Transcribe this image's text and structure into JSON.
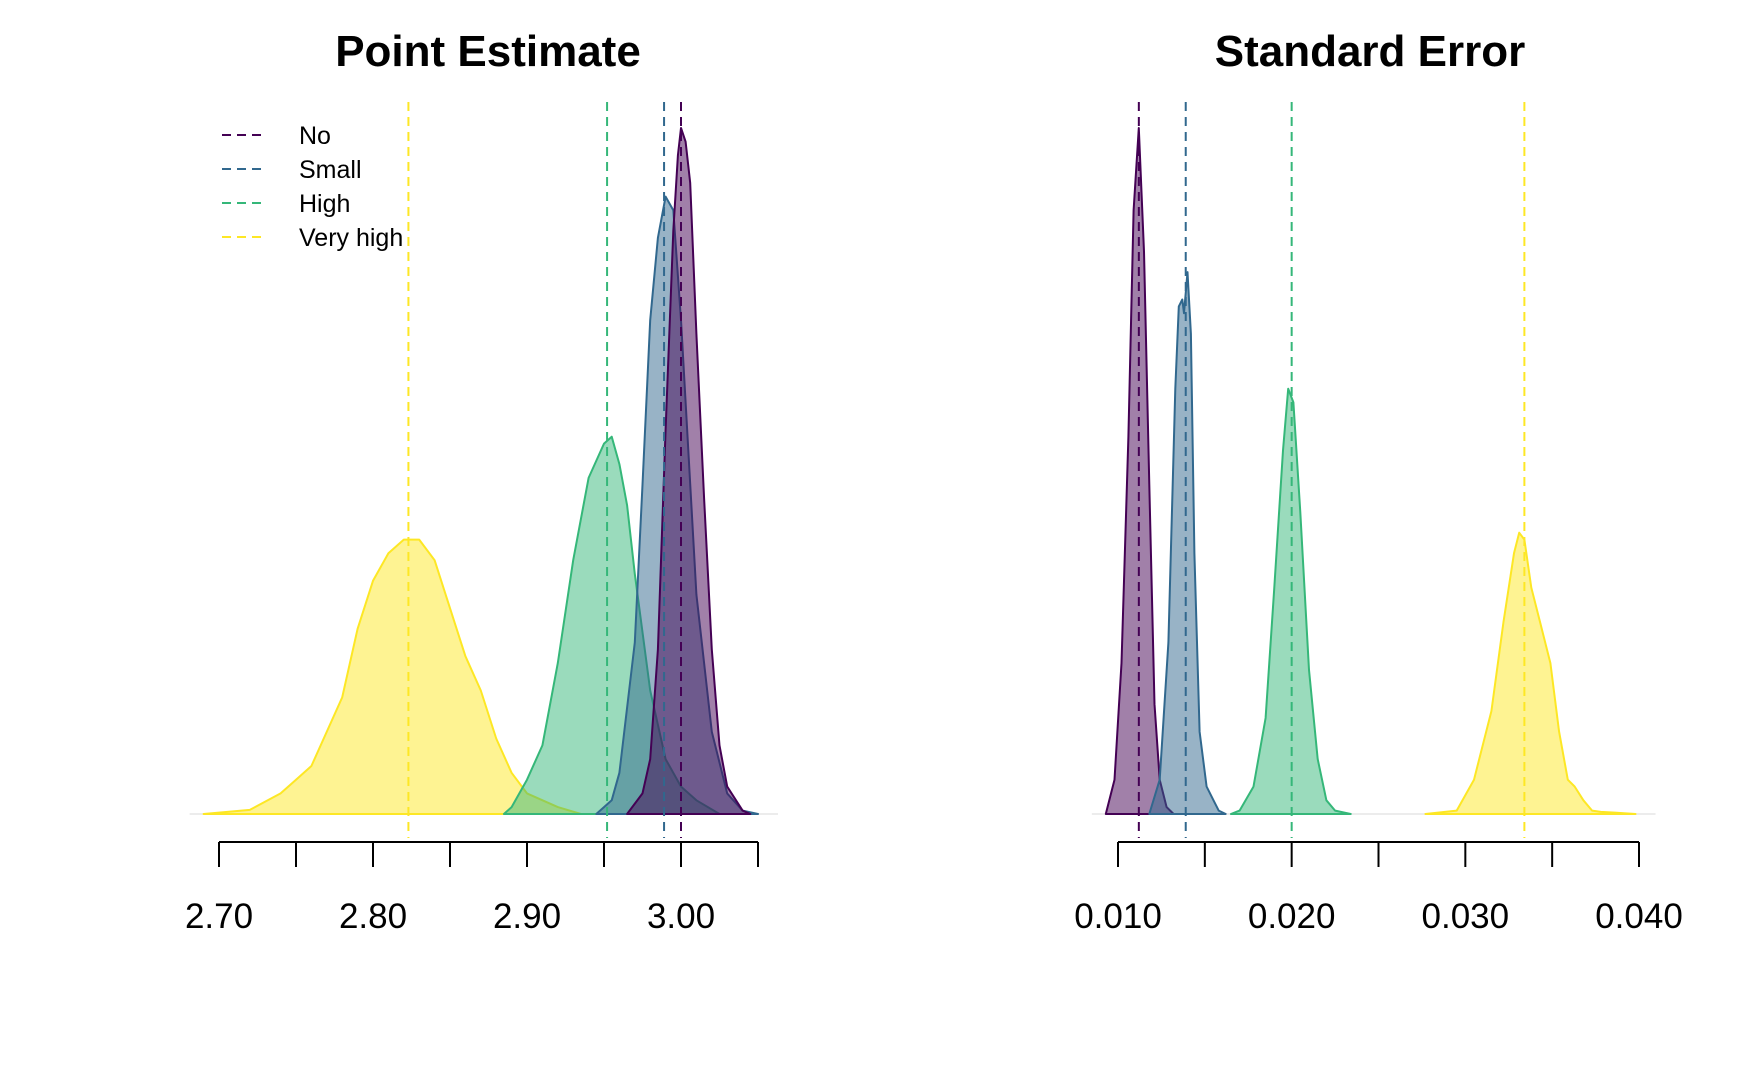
{
  "colors": {
    "No": "#440154",
    "Small": "#31688e",
    "High": "#35b779",
    "Very high": "#fde725"
  },
  "legend": {
    "placement": "top-left",
    "entries": [
      "No",
      "Small",
      "High",
      "Very high"
    ]
  },
  "chart_data": [
    {
      "type": "area",
      "title": "Point Estimate",
      "xlabel": "",
      "ylabel": "",
      "grid": false,
      "xlim": [
        2.7,
        3.05
      ],
      "xticks": [
        2.7,
        2.75,
        2.8,
        2.85,
        2.9,
        2.95,
        3.0,
        3.05
      ],
      "xtick_labels": [
        {
          "value": 2.7,
          "text": "2.70"
        },
        {
          "value": 2.8,
          "text": "2.80"
        },
        {
          "value": 2.9,
          "text": "2.90"
        },
        {
          "value": 3.0,
          "text": "3.00"
        }
      ],
      "series": [
        {
          "name": "Very high",
          "mean": 2.823,
          "curve": [
            [
              2.69,
              0.0
            ],
            [
              2.72,
              0.006
            ],
            [
              2.74,
              0.03
            ],
            [
              2.75,
              0.05
            ],
            [
              2.76,
              0.07
            ],
            [
              2.78,
              0.17
            ],
            [
              2.79,
              0.27
            ],
            [
              2.8,
              0.34
            ],
            [
              2.81,
              0.38
            ],
            [
              2.82,
              0.4
            ],
            [
              2.83,
              0.4
            ],
            [
              2.84,
              0.37
            ],
            [
              2.85,
              0.3
            ],
            [
              2.86,
              0.23
            ],
            [
              2.87,
              0.18
            ],
            [
              2.88,
              0.11
            ],
            [
              2.89,
              0.06
            ],
            [
              2.9,
              0.03
            ],
            [
              2.92,
              0.01
            ],
            [
              2.935,
              0.0
            ]
          ]
        },
        {
          "name": "High",
          "mean": 2.952,
          "curve": [
            [
              2.885,
              0.0
            ],
            [
              2.89,
              0.01
            ],
            [
              2.9,
              0.05
            ],
            [
              2.91,
              0.1
            ],
            [
              2.92,
              0.22
            ],
            [
              2.93,
              0.37
            ],
            [
              2.94,
              0.49
            ],
            [
              2.95,
              0.54
            ],
            [
              2.955,
              0.55
            ],
            [
              2.96,
              0.51
            ],
            [
              2.965,
              0.45
            ],
            [
              2.97,
              0.35
            ],
            [
              2.98,
              0.18
            ],
            [
              2.99,
              0.08
            ],
            [
              3.0,
              0.04
            ],
            [
              3.01,
              0.02
            ],
            [
              3.025,
              0.0
            ]
          ]
        },
        {
          "name": "Small",
          "mean": 2.989,
          "curve": [
            [
              2.945,
              0.0
            ],
            [
              2.955,
              0.02
            ],
            [
              2.96,
              0.06
            ],
            [
              2.97,
              0.25
            ],
            [
              2.975,
              0.48
            ],
            [
              2.98,
              0.72
            ],
            [
              2.985,
              0.84
            ],
            [
              2.99,
              0.9
            ],
            [
              2.995,
              0.88
            ],
            [
              3.0,
              0.72
            ],
            [
              3.005,
              0.52
            ],
            [
              3.01,
              0.32
            ],
            [
              3.02,
              0.12
            ],
            [
              3.03,
              0.03
            ],
            [
              3.04,
              0.005
            ],
            [
              3.05,
              0.0
            ]
          ]
        },
        {
          "name": "No",
          "mean": 3.0,
          "curve": [
            [
              2.965,
              0.0
            ],
            [
              2.975,
              0.03
            ],
            [
              2.98,
              0.08
            ],
            [
              2.985,
              0.24
            ],
            [
              2.99,
              0.56
            ],
            [
              2.995,
              0.85
            ],
            [
              2.998,
              0.96
            ],
            [
              3.0,
              1.0
            ],
            [
              3.003,
              0.98
            ],
            [
              3.006,
              0.92
            ],
            [
              3.01,
              0.7
            ],
            [
              3.015,
              0.46
            ],
            [
              3.02,
              0.24
            ],
            [
              3.025,
              0.1
            ],
            [
              3.03,
              0.04
            ],
            [
              3.04,
              0.005
            ],
            [
              3.045,
              0.0
            ]
          ]
        }
      ]
    },
    {
      "type": "area",
      "title": "Standard Error",
      "xlabel": "",
      "ylabel": "",
      "grid": false,
      "xlim": [
        0.01,
        0.04
      ],
      "xticks": [
        0.01,
        0.015,
        0.02,
        0.025,
        0.03,
        0.035,
        0.04
      ],
      "xtick_labels": [
        {
          "value": 0.01,
          "text": "0.010"
        },
        {
          "value": 0.02,
          "text": "0.020"
        },
        {
          "value": 0.03,
          "text": "0.030"
        },
        {
          "value": 0.04,
          "text": "0.040"
        }
      ],
      "series": [
        {
          "name": "No",
          "mean": 0.0112,
          "curve": [
            [
              0.0093,
              0.0
            ],
            [
              0.0098,
              0.05
            ],
            [
              0.0102,
              0.22
            ],
            [
              0.0106,
              0.55
            ],
            [
              0.0109,
              0.88
            ],
            [
              0.0112,
              1.0
            ],
            [
              0.0115,
              0.82
            ],
            [
              0.0118,
              0.48
            ],
            [
              0.0121,
              0.16
            ],
            [
              0.0124,
              0.05
            ],
            [
              0.0128,
              0.01
            ],
            [
              0.0132,
              0.0
            ]
          ]
        },
        {
          "name": "Small",
          "mean": 0.0139,
          "curve": [
            [
              0.0118,
              0.0
            ],
            [
              0.0124,
              0.05
            ],
            [
              0.0129,
              0.25
            ],
            [
              0.0133,
              0.62
            ],
            [
              0.0135,
              0.74
            ],
            [
              0.0137,
              0.75
            ],
            [
              0.0138,
              0.73
            ],
            [
              0.014,
              0.79
            ],
            [
              0.0142,
              0.7
            ],
            [
              0.0144,
              0.38
            ],
            [
              0.0147,
              0.12
            ],
            [
              0.0151,
              0.04
            ],
            [
              0.0155,
              0.02
            ],
            [
              0.0158,
              0.005
            ],
            [
              0.0162,
              0.0
            ]
          ]
        },
        {
          "name": "High",
          "mean": 0.02,
          "curve": [
            [
              0.0165,
              0.0
            ],
            [
              0.017,
              0.005
            ],
            [
              0.0178,
              0.04
            ],
            [
              0.0185,
              0.14
            ],
            [
              0.019,
              0.33
            ],
            [
              0.0195,
              0.53
            ],
            [
              0.0198,
              0.62
            ],
            [
              0.0201,
              0.6
            ],
            [
              0.0205,
              0.44
            ],
            [
              0.021,
              0.21
            ],
            [
              0.0215,
              0.08
            ],
            [
              0.022,
              0.02
            ],
            [
              0.0225,
              0.005
            ],
            [
              0.0234,
              0.0
            ]
          ]
        },
        {
          "name": "Very high",
          "mean": 0.0334,
          "curve": [
            [
              0.0277,
              0.0
            ],
            [
              0.0295,
              0.005
            ],
            [
              0.0305,
              0.05
            ],
            [
              0.0315,
              0.15
            ],
            [
              0.0322,
              0.28
            ],
            [
              0.0328,
              0.38
            ],
            [
              0.0331,
              0.41
            ],
            [
              0.0334,
              0.4
            ],
            [
              0.0338,
              0.33
            ],
            [
              0.0343,
              0.28
            ],
            [
              0.0349,
              0.22
            ],
            [
              0.0354,
              0.12
            ],
            [
              0.0359,
              0.05
            ],
            [
              0.0363,
              0.04
            ],
            [
              0.0368,
              0.02
            ],
            [
              0.0373,
              0.005
            ],
            [
              0.0378,
              0.003
            ],
            [
              0.0386,
              0.002
            ],
            [
              0.0398,
              0.0
            ]
          ]
        }
      ]
    }
  ]
}
